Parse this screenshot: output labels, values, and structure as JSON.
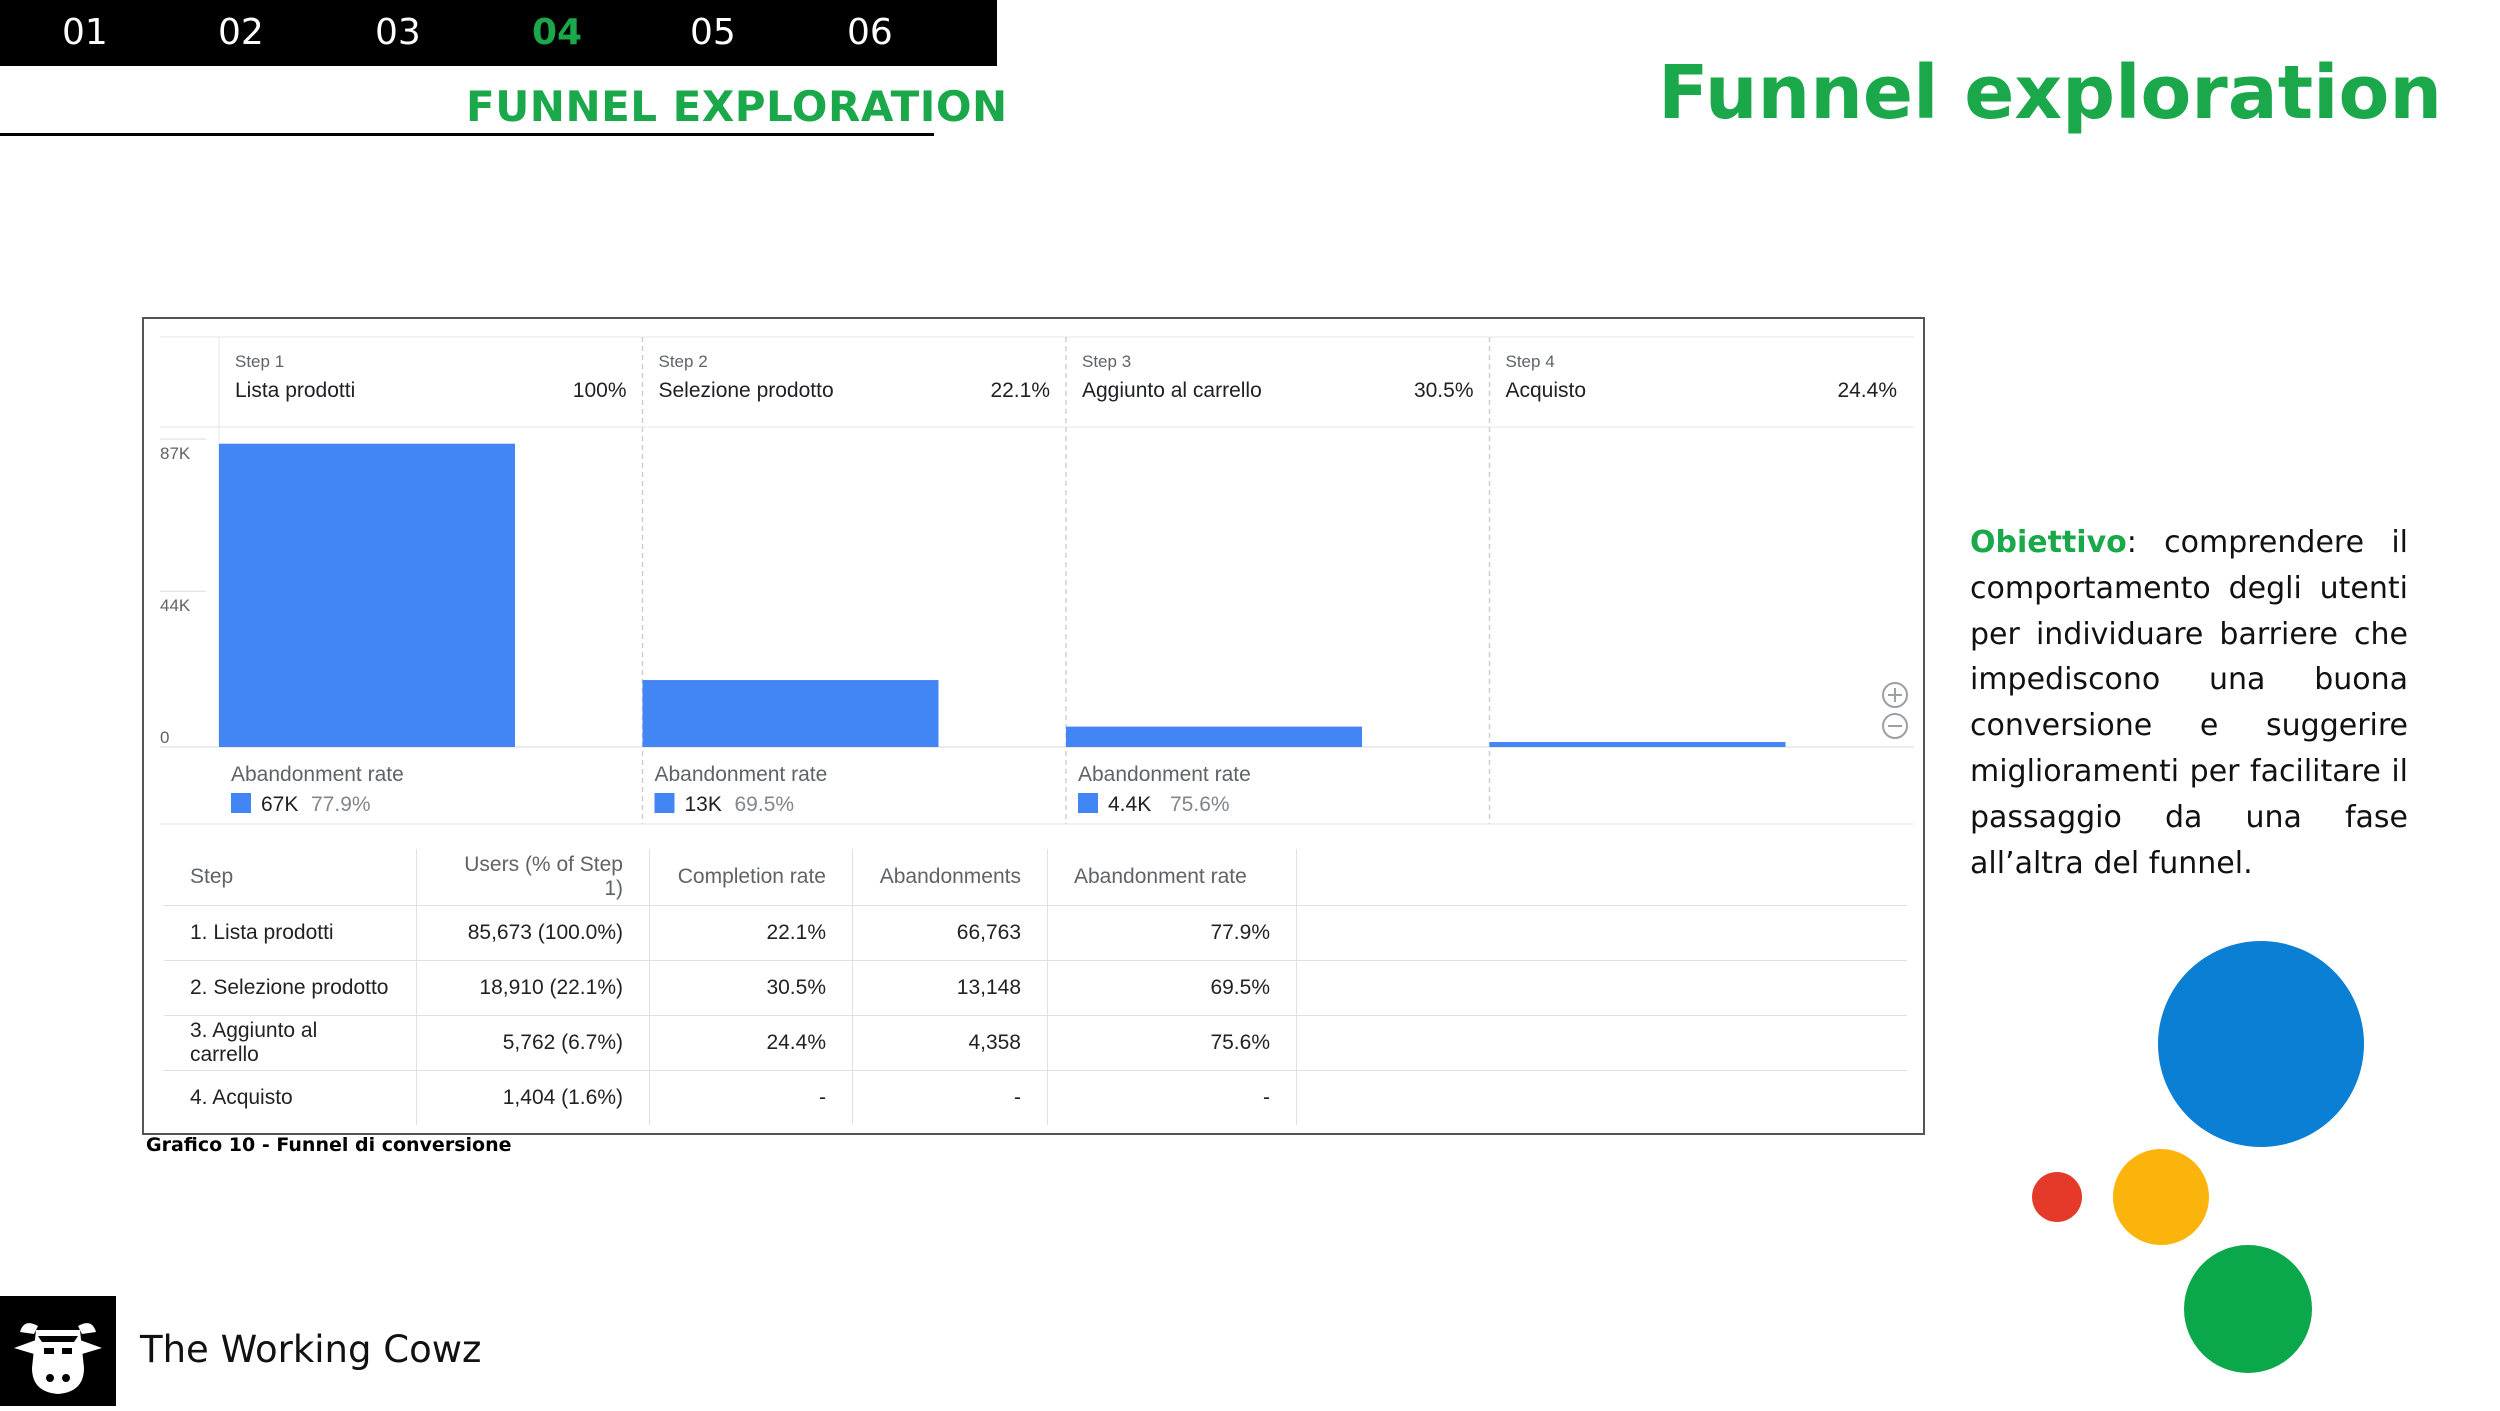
{
  "nav": {
    "items": [
      "01",
      "02",
      "03",
      "04",
      "05",
      "06"
    ],
    "active_index": 3,
    "section_title": "FUNNEL EXPLORATION"
  },
  "page_title": "Funnel exploration",
  "chart_data": {
    "type": "bar",
    "steps": [
      {
        "step_label": "Step 1",
        "name": "Lista prodotti",
        "percent": "100%",
        "users": 85673,
        "abandonment_label": "Abandonment rate",
        "abandonment_value": "67K",
        "abandonment_pct": "77.9%"
      },
      {
        "step_label": "Step 2",
        "name": "Selezione prodotto",
        "percent": "22.1%",
        "users": 18910,
        "abandonment_label": "Abandonment rate",
        "abandonment_value": "13K",
        "abandonment_pct": "69.5%"
      },
      {
        "step_label": "Step 3",
        "name": "Aggiunto al carrello",
        "percent": "30.5%",
        "users": 5762,
        "abandonment_label": "Abandonment rate",
        "abandonment_value": "4.4K",
        "abandonment_pct": "75.6%"
      },
      {
        "step_label": "Step 4",
        "name": "Acquisto",
        "percent": "24.4%",
        "users": 1404
      }
    ],
    "y_ticks": [
      {
        "label": "87K",
        "value": 87000
      },
      {
        "label": "44K",
        "value": 44000
      },
      {
        "label": "0",
        "value": 0
      }
    ],
    "ylim": [
      0,
      87000
    ],
    "bar_color": "#4285f4"
  },
  "table": {
    "headers": [
      "Step",
      "Users (% of Step 1)",
      "Completion rate",
      "Abandonments",
      "Abandonment rate"
    ],
    "rows": [
      [
        "1. Lista prodotti",
        "85,673 (100.0%)",
        "22.1%",
        "66,763",
        "77.9%"
      ],
      [
        "2. Selezione prodotto",
        "18,910 (22.1%)",
        "30.5%",
        "13,148",
        "69.5%"
      ],
      [
        "3. Aggiunto al carrello",
        "5,762 (6.7%)",
        "24.4%",
        "4,358",
        "75.6%"
      ],
      [
        "4. Acquisto",
        "1,404 (1.6%)",
        "-",
        "-",
        "-"
      ]
    ]
  },
  "caption": "Grafico 10 - Funnel di conversione",
  "objective": {
    "label": "Obiettivo",
    "text": ": comprendere il comportamento degli utenti per individuare barriere che impediscono una buona conversione e suggerire miglioramenti per facilitare il passaggio da una fase all’altra del funnel."
  },
  "colors": {
    "accent_green": "#1aa84b",
    "circle_blue": "#0a7fd4",
    "circle_yellow": "#fbb40b",
    "circle_red": "#e53a2a",
    "circle_green": "#0aa84a"
  },
  "footer": {
    "brand": "The Working Cowz",
    "logo_icon": "cow-head-icon"
  }
}
